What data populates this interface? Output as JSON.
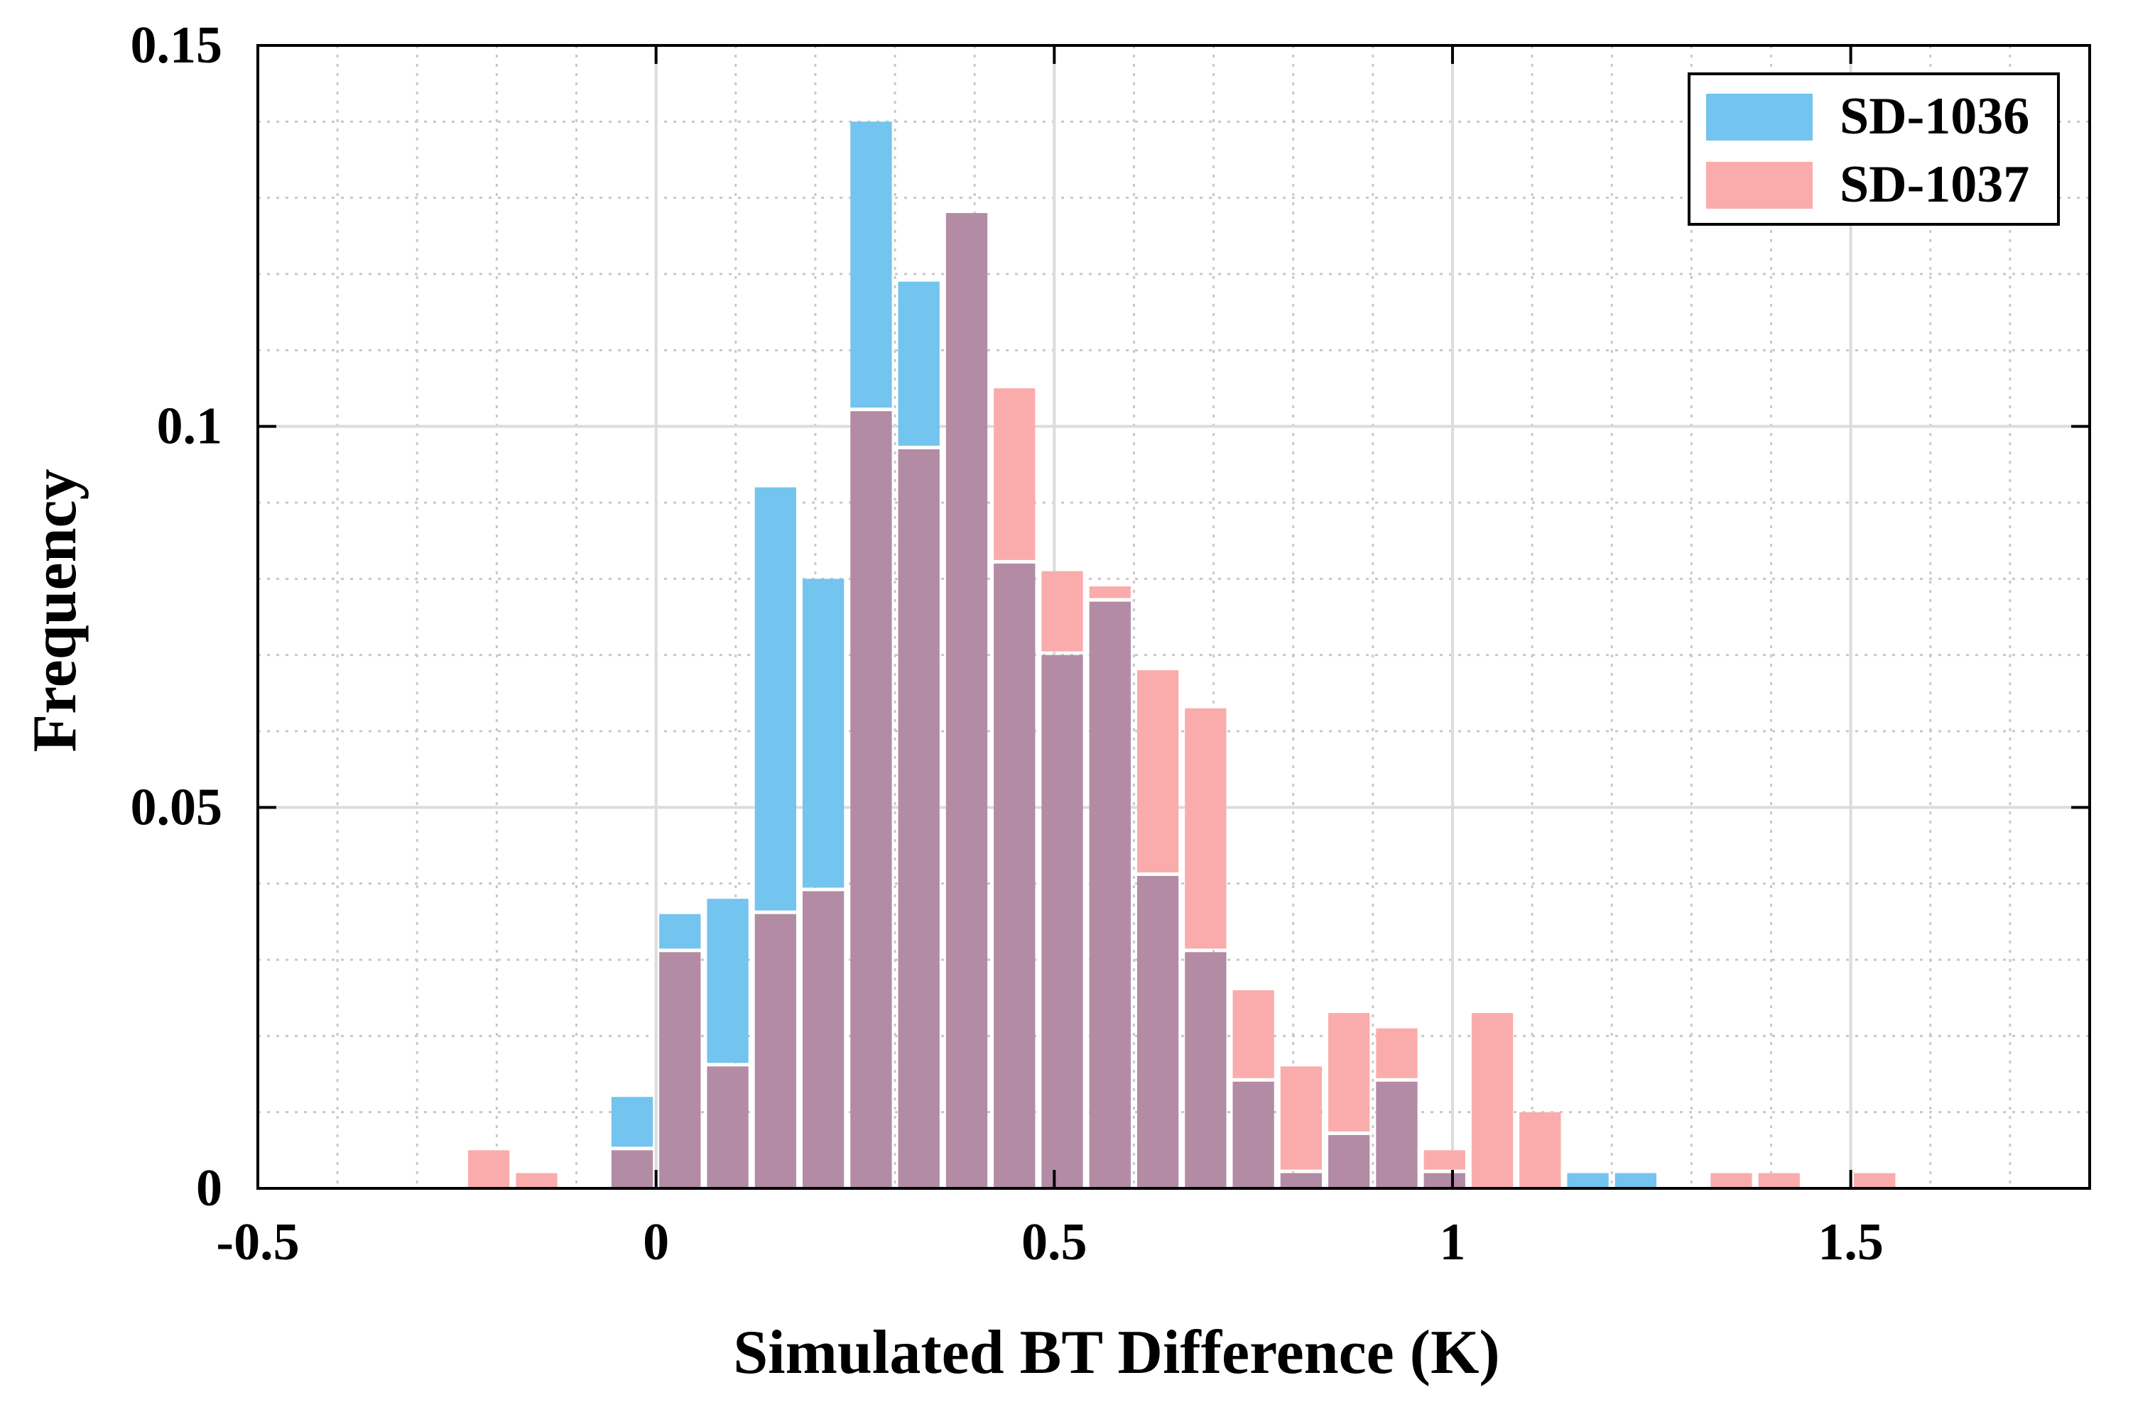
{
  "chart_data": {
    "type": "bar",
    "title": "",
    "xlabel": "Simulated BT Difference (K)",
    "ylabel": "Frequency",
    "xlim": [
      -0.5,
      1.8
    ],
    "ylim": [
      0,
      0.15
    ],
    "xticks": [
      -0.5,
      0,
      0.5,
      1,
      1.5
    ],
    "xtick_labels": [
      "-0.5",
      "0",
      "0.5",
      "1",
      "1.5"
    ],
    "yticks": [
      0,
      0.05,
      0.1,
      0.15
    ],
    "ytick_labels": [
      "0",
      "0.05",
      "0.1",
      "0.15"
    ],
    "grid": true,
    "minor_grid": true,
    "legend_position": "top-right",
    "bin_width": 0.06,
    "bin_centers": [
      -0.21,
      -0.15,
      -0.09,
      -0.03,
      0.03,
      0.09,
      0.15,
      0.21,
      0.27,
      0.33,
      0.39,
      0.45,
      0.51,
      0.57,
      0.63,
      0.69,
      0.75,
      0.81,
      0.87,
      0.93,
      0.99,
      1.05,
      1.11,
      1.17,
      1.23,
      1.29,
      1.35,
      1.41,
      1.47,
      1.53
    ],
    "series": [
      {
        "name": "SD-1036",
        "color": "#73c4ee",
        "values": [
          0,
          0,
          0,
          0.012,
          0.036,
          0.038,
          0.092,
          0.08,
          0.14,
          0.119,
          0.128,
          0.082,
          0.07,
          0.077,
          0.041,
          0.031,
          0.014,
          0.002,
          0.007,
          0.014,
          0.002,
          0,
          0,
          0.002,
          0.002,
          0,
          0,
          0,
          0,
          0
        ]
      },
      {
        "name": "SD-1037",
        "color": "#faacac",
        "values": [
          0.005,
          0.002,
          0,
          0.005,
          0.031,
          0.016,
          0.036,
          0.039,
          0.102,
          0.097,
          0.128,
          0.105,
          0.081,
          0.079,
          0.068,
          0.063,
          0.026,
          0.016,
          0.023,
          0.021,
          0.005,
          0.023,
          0.01,
          0,
          0,
          0,
          0.002,
          0.002,
          0,
          0.002
        ]
      }
    ],
    "overlap_color": "#b38ba4"
  }
}
